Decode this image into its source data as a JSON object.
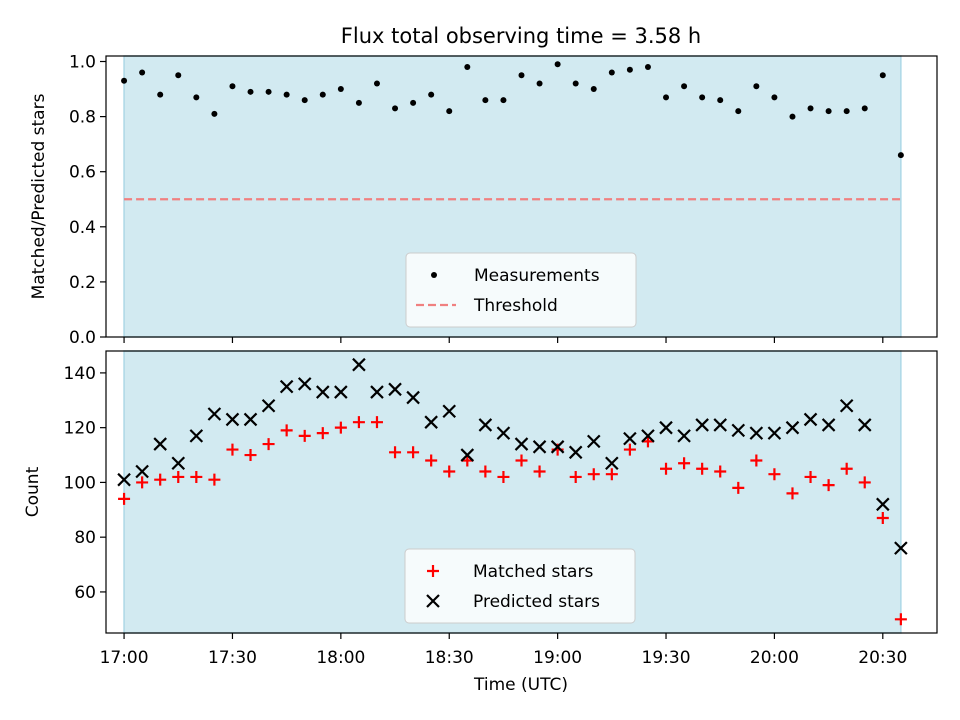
{
  "title": "Flux total observing time = 3.58 h",
  "colors": {
    "obs_band": "#add8e6",
    "measurement": "#000000",
    "threshold": "#f08080",
    "matched": "#ff0000",
    "predicted": "#000000"
  },
  "chart_data": [
    {
      "type": "scatter",
      "ylabel": "Matched/Predicted stars",
      "ylim": [
        0.0,
        1.02
      ],
      "yticks": [
        "0.0",
        "0.2",
        "0.4",
        "0.6",
        "0.8",
        "1.0"
      ],
      "ytick_values": [
        0.0,
        0.2,
        0.4,
        0.6,
        0.8,
        1.0
      ],
      "xlim": [
        "16:55",
        "20:45"
      ],
      "legend_position": "lower center",
      "threshold": {
        "name": "Threshold",
        "value": 0.5
      },
      "series": [
        {
          "name": "Measurements",
          "marker": "dot",
          "x": [
            "17:00",
            "17:05",
            "17:10",
            "17:15",
            "17:20",
            "17:25",
            "17:30",
            "17:35",
            "17:40",
            "17:45",
            "17:50",
            "17:55",
            "18:00",
            "18:05",
            "18:10",
            "18:15",
            "18:20",
            "18:25",
            "18:30",
            "18:35",
            "18:40",
            "18:45",
            "18:50",
            "18:55",
            "19:00",
            "19:05",
            "19:10",
            "19:15",
            "19:20",
            "19:25",
            "19:30",
            "19:35",
            "19:40",
            "19:45",
            "19:50",
            "19:55",
            "20:00",
            "20:05",
            "20:10",
            "20:15",
            "20:20",
            "20:25",
            "20:30",
            "20:35"
          ],
          "y": [
            0.93,
            0.96,
            0.88,
            0.95,
            0.87,
            0.81,
            0.91,
            0.89,
            0.89,
            0.88,
            0.86,
            0.88,
            0.9,
            0.85,
            0.92,
            0.83,
            0.85,
            0.88,
            0.82,
            0.98,
            0.86,
            0.86,
            0.95,
            0.92,
            0.99,
            0.92,
            0.9,
            0.96,
            0.97,
            0.98,
            0.87,
            0.91,
            0.87,
            0.86,
            0.82,
            0.91,
            0.87,
            0.8,
            0.83,
            0.82,
            0.82,
            0.83,
            0.95,
            0.66
          ]
        }
      ]
    },
    {
      "type": "scatter",
      "xlabel": "Time (UTC)",
      "ylabel": "Count",
      "ylim": [
        45,
        148
      ],
      "yticks": [
        "60",
        "80",
        "100",
        "120",
        "140"
      ],
      "ytick_values": [
        60,
        80,
        100,
        120,
        140
      ],
      "xlim": [
        "16:55",
        "20:45"
      ],
      "xticks": [
        "17:00",
        "17:30",
        "18:00",
        "18:30",
        "19:00",
        "19:30",
        "20:00",
        "20:30"
      ],
      "legend_position": "lower center",
      "series": [
        {
          "name": "Matched stars",
          "marker": "plus",
          "x": [
            "17:00",
            "17:05",
            "17:10",
            "17:15",
            "17:20",
            "17:25",
            "17:30",
            "17:35",
            "17:40",
            "17:45",
            "17:50",
            "17:55",
            "18:00",
            "18:05",
            "18:10",
            "18:15",
            "18:20",
            "18:25",
            "18:30",
            "18:35",
            "18:40",
            "18:45",
            "18:50",
            "18:55",
            "19:00",
            "19:05",
            "19:10",
            "19:15",
            "19:20",
            "19:25",
            "19:30",
            "19:35",
            "19:40",
            "19:45",
            "19:50",
            "19:55",
            "20:00",
            "20:05",
            "20:10",
            "20:15",
            "20:20",
            "20:25",
            "20:30",
            "20:35"
          ],
          "y": [
            94,
            100,
            101,
            102,
            102,
            101,
            112,
            110,
            114,
            119,
            117,
            118,
            120,
            122,
            122,
            111,
            111,
            108,
            104,
            108,
            104,
            102,
            108,
            104,
            112,
            102,
            103,
            103,
            112,
            115,
            105,
            107,
            105,
            104,
            98,
            108,
            103,
            96,
            102,
            99,
            105,
            100,
            87,
            50
          ]
        },
        {
          "name": "Predicted stars",
          "marker": "x",
          "x": [
            "17:00",
            "17:05",
            "17:10",
            "17:15",
            "17:20",
            "17:25",
            "17:30",
            "17:35",
            "17:40",
            "17:45",
            "17:50",
            "17:55",
            "18:00",
            "18:05",
            "18:10",
            "18:15",
            "18:20",
            "18:25",
            "18:30",
            "18:35",
            "18:40",
            "18:45",
            "18:50",
            "18:55",
            "19:00",
            "19:05",
            "19:10",
            "19:15",
            "19:20",
            "19:25",
            "19:30",
            "19:35",
            "19:40",
            "19:45",
            "19:50",
            "19:55",
            "20:00",
            "20:05",
            "20:10",
            "20:15",
            "20:20",
            "20:25",
            "20:30",
            "20:35"
          ],
          "y": [
            101,
            104,
            114,
            107,
            117,
            125,
            123,
            123,
            128,
            135,
            136,
            133,
            133,
            143,
            133,
            134,
            131,
            122,
            126,
            110,
            121,
            118,
            114,
            113,
            113,
            111,
            115,
            107,
            116,
            117,
            120,
            117,
            121,
            121,
            119,
            118,
            118,
            120,
            123,
            121,
            128,
            121,
            92,
            76
          ]
        }
      ]
    }
  ]
}
